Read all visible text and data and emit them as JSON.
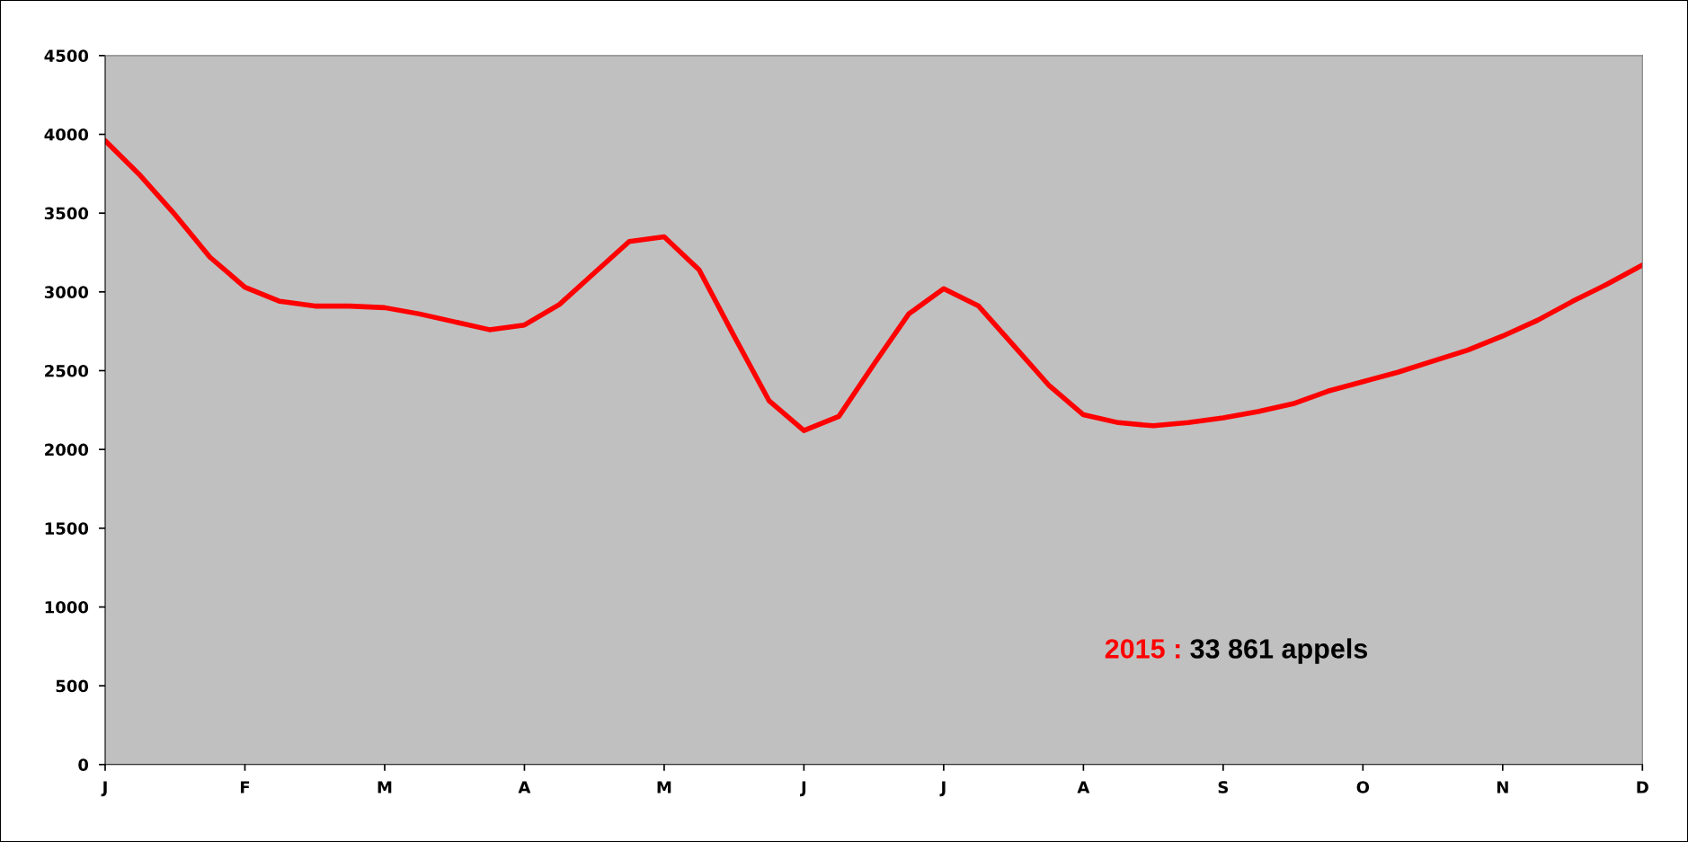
{
  "chart_data": {
    "type": "line",
    "categories": [
      "J",
      null,
      null,
      null,
      "F",
      null,
      null,
      null,
      "M",
      null,
      null,
      null,
      "A",
      null,
      null,
      null,
      "M",
      null,
      null,
      null,
      "J",
      null,
      null,
      null,
      "J",
      null,
      null,
      null,
      "A",
      null,
      null,
      null,
      "S",
      null,
      null,
      null,
      "O",
      null,
      null,
      null,
      "N",
      null,
      null,
      null,
      "D"
    ],
    "series": [
      {
        "color": "#ff0000",
        "values": [
          3960,
          3740,
          3490,
          3220,
          3030,
          2940,
          2910,
          2910,
          2900,
          2860,
          2810,
          2760,
          2790,
          2920,
          3120,
          3320,
          3350,
          3140,
          2720,
          2310,
          2120,
          2210,
          2540,
          2860,
          3020,
          2910,
          2660,
          2410,
          2220,
          2170,
          2150,
          2170,
          2200,
          2240,
          2290,
          2370,
          2430,
          2490,
          2560,
          2630,
          2720,
          2820,
          2940,
          3050,
          3170
        ]
      }
    ],
    "ylim": [
      0,
      4500
    ],
    "yticks": [
      0,
      500,
      1000,
      1500,
      2000,
      2500,
      3000,
      3500,
      4000,
      4500
    ],
    "annotations": [
      "2015 : 33 861 appels"
    ],
    "marker": "none",
    "line_style": "solid",
    "grid": false,
    "legend": false
  }
}
